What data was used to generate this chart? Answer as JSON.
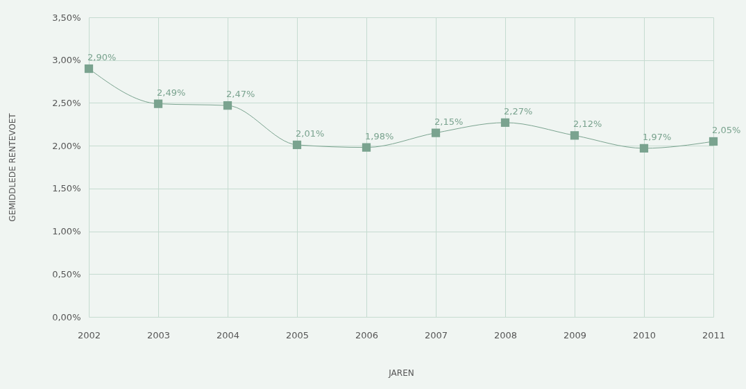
{
  "chart_data": {
    "type": "line",
    "xlabel": "JAREN",
    "ylabel": "GEMIDDLEDE RENTEVOET",
    "categories": [
      "2002",
      "2003",
      "2004",
      "2005",
      "2006",
      "2007",
      "2008",
      "2009",
      "2010",
      "2011"
    ],
    "series": [
      {
        "color": "#7aa38f",
        "values": [
          2.9,
          2.49,
          2.47,
          2.01,
          1.98,
          2.15,
          2.27,
          2.12,
          1.97,
          2.05
        ],
        "value_labels": [
          "2,90%",
          "2,49%",
          "2,47%",
          "2,01%",
          "1,98%",
          "2,15%",
          "2,27%",
          "2,12%",
          "1,97%",
          "2,05%"
        ]
      }
    ],
    "ylim": [
      0,
      3.5
    ],
    "yticks": [
      {
        "value": 0,
        "label": "0,00%"
      },
      {
        "value": 0.5,
        "label": "0,50%"
      },
      {
        "value": 1,
        "label": "1,00%"
      },
      {
        "value": 1.5,
        "label": "1,50%"
      },
      {
        "value": 2,
        "label": "2,00%"
      },
      {
        "value": 2.5,
        "label": "2,50%"
      },
      {
        "value": 3,
        "label": "3,00%"
      },
      {
        "value": 3.5,
        "label": "3,50%"
      }
    ],
    "grid": true,
    "marker": "square",
    "line_style": "solid"
  }
}
